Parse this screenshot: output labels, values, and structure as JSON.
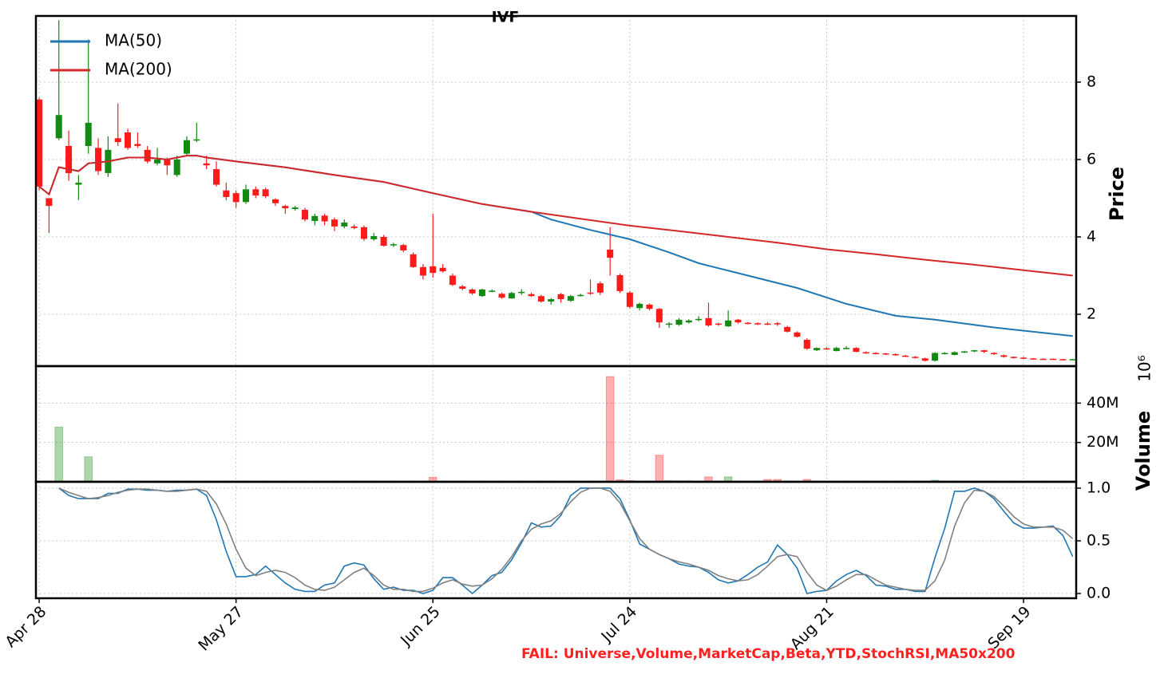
{
  "chart_data": [
    {
      "type": "candlestick",
      "title": "IVF",
      "categories": [
        "Apr 28",
        null,
        null,
        null,
        null,
        null,
        null,
        null,
        null,
        null,
        null,
        null,
        null,
        null,
        null,
        null,
        null,
        null,
        null,
        null,
        "May 27",
        null,
        null,
        null,
        null,
        null,
        null,
        null,
        null,
        null,
        null,
        null,
        null,
        null,
        null,
        null,
        null,
        null,
        null,
        null,
        "Jun 25",
        null,
        null,
        null,
        null,
        null,
        null,
        null,
        null,
        null,
        null,
        null,
        null,
        null,
        null,
        null,
        null,
        null,
        null,
        null,
        "Jul 24",
        null,
        null,
        null,
        null,
        null,
        null,
        null,
        null,
        null,
        null,
        null,
        null,
        null,
        null,
        null,
        null,
        null,
        null,
        null,
        "Aug 21",
        null,
        null,
        null,
        null,
        null,
        null,
        null,
        null,
        null,
        null,
        null,
        null,
        null,
        null,
        null,
        null,
        null,
        null,
        null,
        "Sep 19",
        null,
        null,
        null,
        null,
        null
      ],
      "open": [
        7.55,
        5.0,
        6.55,
        6.35,
        5.35,
        6.35,
        6.3,
        5.65,
        6.55,
        6.7,
        6.4,
        6.25,
        5.9,
        6.0,
        5.6,
        6.15,
        6.5,
        5.9,
        5.75,
        5.2,
        5.13,
        4.9,
        5.23,
        5.23,
        4.97,
        4.8,
        4.72,
        4.7,
        4.41,
        4.55,
        4.45,
        4.27,
        4.27,
        4.25,
        3.94,
        4.0,
        3.78,
        3.79,
        3.55,
        3.22,
        3.24,
        3.2,
        3.0,
        2.72,
        2.64,
        2.47,
        2.6,
        2.53,
        2.41,
        2.55,
        2.52,
        2.47,
        2.33,
        2.52,
        2.35,
        2.49,
        2.56,
        2.8,
        3.67,
        3.01,
        2.56,
        2.16,
        2.25,
        2.14,
        1.74,
        1.73,
        1.79,
        1.86,
        1.9,
        1.76,
        1.69,
        1.86,
        1.78,
        1.77,
        1.76,
        1.77,
        1.67,
        1.53,
        1.34,
        1.07,
        1.12,
        1.05,
        1.12,
        1.13,
        1.02,
        1.0,
        0.99,
        0.97,
        0.93,
        0.9,
        0.86,
        0.8,
        0.98,
        0.95,
        1.02,
        1.04,
        1.07,
        1.0,
        0.94,
        0.9,
        0.88,
        0.86,
        0.85,
        0.85,
        0.84,
        0.83
      ],
      "high": [
        7.6,
        5.0,
        9.6,
        6.75,
        5.6,
        9.1,
        6.55,
        6.6,
        7.45,
        6.8,
        6.7,
        6.35,
        6.3,
        6.05,
        6.1,
        6.6,
        6.95,
        6.1,
        5.95,
        5.4,
        5.2,
        5.35,
        5.3,
        5.27,
        5.0,
        4.83,
        4.8,
        4.75,
        4.6,
        4.6,
        4.5,
        4.45,
        4.32,
        4.3,
        4.1,
        4.05,
        3.85,
        3.82,
        3.6,
        3.3,
        4.6,
        3.3,
        3.05,
        2.76,
        2.67,
        2.66,
        2.64,
        2.56,
        2.58,
        2.65,
        2.56,
        2.5,
        2.42,
        2.55,
        2.5,
        2.53,
        2.9,
        2.85,
        4.25,
        3.05,
        2.6,
        2.3,
        2.28,
        2.16,
        1.8,
        1.9,
        1.87,
        1.95,
        2.3,
        1.78,
        2.1,
        1.88,
        1.8,
        1.79,
        1.8,
        1.8,
        1.7,
        1.56,
        1.38,
        1.14,
        1.15,
        1.16,
        1.18,
        1.15,
        1.04,
        1.02,
        1.0,
        0.99,
        0.95,
        0.92,
        0.88,
        1.02,
        1.02,
        1.04,
        1.06,
        1.08,
        1.08,
        1.02,
        0.96,
        0.91,
        0.9,
        0.87,
        0.86,
        0.86,
        0.85,
        0.85
      ],
      "low": [
        5.2,
        4.1,
        6.5,
        5.45,
        4.95,
        6.15,
        5.6,
        5.55,
        6.35,
        6.25,
        6.3,
        5.9,
        5.85,
        5.6,
        5.55,
        6.1,
        6.45,
        5.75,
        5.3,
        4.95,
        4.75,
        4.85,
        5.0,
        5.0,
        4.8,
        4.6,
        4.68,
        4.4,
        4.3,
        4.3,
        4.15,
        4.22,
        4.2,
        3.9,
        3.9,
        3.75,
        3.74,
        3.6,
        3.2,
        2.9,
        2.95,
        3.08,
        2.73,
        2.62,
        2.5,
        2.45,
        2.57,
        2.4,
        2.4,
        2.5,
        2.45,
        2.3,
        2.25,
        2.3,
        2.32,
        2.46,
        2.5,
        2.5,
        3.0,
        2.55,
        2.15,
        2.1,
        2.1,
        1.65,
        1.65,
        1.7,
        1.76,
        1.82,
        1.68,
        1.7,
        1.67,
        1.76,
        1.74,
        1.72,
        1.72,
        1.7,
        1.53,
        1.4,
        1.08,
        1.05,
        1.08,
        1.04,
        1.1,
        1.02,
        0.98,
        0.96,
        0.95,
        0.93,
        0.9,
        0.86,
        0.78,
        0.78,
        0.96,
        0.94,
        1.0,
        1.02,
        1.0,
        0.95,
        0.88,
        0.86,
        0.85,
        0.83,
        0.83,
        0.83,
        0.82,
        0.82
      ],
      "close": [
        5.3,
        4.8,
        7.15,
        5.65,
        5.4,
        6.95,
        5.7,
        6.25,
        6.45,
        6.3,
        6.35,
        5.95,
        6.0,
        5.85,
        6.0,
        6.5,
        6.52,
        5.85,
        5.35,
        5.03,
        4.9,
        5.23,
        5.07,
        5.05,
        4.87,
        4.74,
        4.76,
        4.45,
        4.54,
        4.4,
        4.27,
        4.37,
        4.23,
        3.95,
        4.02,
        3.77,
        3.81,
        3.65,
        3.22,
        3.0,
        3.07,
        3.11,
        2.76,
        2.66,
        2.54,
        2.64,
        2.61,
        2.43,
        2.55,
        2.58,
        2.47,
        2.33,
        2.39,
        2.39,
        2.47,
        2.5,
        2.54,
        2.56,
        3.46,
        2.6,
        2.19,
        2.27,
        2.14,
        1.79,
        1.76,
        1.86,
        1.84,
        1.88,
        1.71,
        1.74,
        1.84,
        1.79,
        1.77,
        1.76,
        1.75,
        1.76,
        1.55,
        1.42,
        1.11,
        1.13,
        1.1,
        1.13,
        1.13,
        1.03,
        1.0,
        0.97,
        0.97,
        0.94,
        0.92,
        0.87,
        0.8,
        1.0,
        1.0,
        1.02,
        1.04,
        1.07,
        1.03,
        0.97,
        0.9,
        0.88,
        0.87,
        0.84,
        0.84,
        0.84,
        0.83,
        0.84
      ],
      "up_color": "#138a13",
      "down_color": "#ff1a1a",
      "series": [
        {
          "name": "MA(50)",
          "color": "#1f77b4",
          "x": [
            0,
            1,
            2,
            3,
            4,
            5,
            7,
            9,
            11,
            13,
            15,
            16,
            17,
            20,
            25,
            30,
            35,
            40,
            45,
            50,
            52,
            56,
            60,
            64,
            67,
            72,
            77,
            82,
            87,
            91,
            97,
            105
          ],
          "values": [
            5.3,
            5.1,
            5.8,
            5.75,
            5.7,
            5.9,
            5.95,
            6.05,
            6.05,
            6.0,
            6.1,
            6.1,
            6.05,
            5.95,
            5.8,
            5.6,
            5.42,
            5.13,
            4.85,
            4.65,
            4.45,
            4.18,
            3.94,
            3.6,
            3.32,
            3.0,
            2.68,
            2.27,
            1.96,
            1.86,
            1.66,
            1.44
          ]
        },
        {
          "name": "MA(200)",
          "color": "#d62728",
          "x": [
            0,
            1,
            2,
            3,
            4,
            5,
            7,
            9,
            11,
            13,
            15,
            16,
            17,
            20,
            25,
            30,
            35,
            40,
            45,
            50,
            55,
            60,
            65,
            70,
            75,
            80,
            85,
            90,
            95,
            100,
            105
          ],
          "values": [
            5.3,
            5.1,
            5.8,
            5.75,
            5.7,
            5.9,
            5.95,
            6.05,
            6.05,
            6.0,
            6.1,
            6.1,
            6.05,
            5.95,
            5.8,
            5.6,
            5.42,
            5.13,
            4.85,
            4.65,
            4.47,
            4.29,
            4.15,
            4.0,
            3.85,
            3.68,
            3.55,
            3.41,
            3.28,
            3.14,
            3.0
          ]
        }
      ],
      "ylabel": "Price",
      "ylim": [
        0.66,
        9.71
      ],
      "yticks": [
        2,
        4,
        6,
        8
      ],
      "grid": true,
      "legend": "upper left"
    },
    {
      "type": "bar",
      "ylabel": "Volume",
      "offset_label": "10⁶",
      "values": [
        0.3,
        0.3,
        27.8,
        0.3,
        0.3,
        12.7,
        0.3,
        0.3,
        0.3,
        0.3,
        0.3,
        0.3,
        0.3,
        0.3,
        0.3,
        0.3,
        0.3,
        0.3,
        0.3,
        0.3,
        0.3,
        0.3,
        0.3,
        0.3,
        0.3,
        0.3,
        0.3,
        0.3,
        0.3,
        0.3,
        0.3,
        0.3,
        0.3,
        0.3,
        0.3,
        0.3,
        0.3,
        0.3,
        0.3,
        0.3,
        2.3,
        0.3,
        0.3,
        0.3,
        0.3,
        0.3,
        0.3,
        0.3,
        0.3,
        0.3,
        0.3,
        0.3,
        0.3,
        0.3,
        0.3,
        0.3,
        0.3,
        0.3,
        53.5,
        1.0,
        0.6,
        0.3,
        0.3,
        13.5,
        0.6,
        0.5,
        0.5,
        0.3,
        2.5,
        0.3,
        2.5,
        0.3,
        0.3,
        0.3,
        1.2,
        1.2,
        0.3,
        0.3,
        1.2,
        0.3,
        0.3,
        0.3,
        0.3,
        0.3,
        0.3,
        0.3,
        0.3,
        0.3,
        0.3,
        0.3,
        0.3,
        0.8,
        0.3,
        0.3,
        0.3,
        0.3,
        0.3,
        0.3,
        0.3,
        0.3,
        0.3,
        0.3,
        0.3,
        0.3,
        0.3,
        0.3
      ],
      "opacity": 0.35,
      "ylim": [
        0,
        58.8
      ],
      "yticks": [
        {
          "value": 20,
          "label": "20M"
        },
        {
          "value": 40,
          "label": "40M"
        }
      ],
      "grid": true
    },
    {
      "type": "line",
      "series": [
        {
          "color": "#1f77b4",
          "values": [
            null,
            null,
            1.0,
            0.93,
            0.9,
            0.9,
            0.9,
            0.95,
            0.95,
            0.99,
            0.99,
            0.98,
            0.98,
            0.97,
            0.98,
            0.98,
            0.99,
            0.93,
            0.7,
            0.4,
            0.16,
            0.16,
            0.18,
            0.26,
            0.18,
            0.1,
            0.04,
            0.02,
            0.02,
            0.08,
            0.1,
            0.26,
            0.29,
            0.27,
            0.14,
            0.04,
            0.06,
            0.03,
            0.03,
            0.0,
            0.03,
            0.15,
            0.15,
            0.08,
            0.0,
            0.08,
            0.17,
            0.2,
            0.32,
            0.48,
            0.67,
            0.63,
            0.64,
            0.74,
            0.93,
            1.0,
            1.0,
            1.0,
            1.0,
            0.9,
            0.7,
            0.47,
            0.42,
            0.37,
            0.33,
            0.28,
            0.26,
            0.25,
            0.2,
            0.13,
            0.1,
            0.12,
            0.18,
            0.25,
            0.3,
            0.46,
            0.37,
            0.24,
            0.0,
            0.02,
            0.03,
            0.12,
            0.18,
            0.22,
            0.17,
            0.08,
            0.07,
            0.04,
            0.04,
            0.02,
            0.02,
            0.34,
            0.62,
            0.97,
            0.97,
            1.0,
            0.97,
            0.9,
            0.78,
            0.67,
            0.62,
            0.62,
            0.63,
            0.64,
            0.55,
            0.35
          ]
        },
        {
          "color": "#808080",
          "values": [
            null,
            null,
            1.0,
            0.96,
            0.93,
            0.9,
            0.91,
            0.93,
            0.96,
            0.98,
            0.99,
            0.99,
            0.98,
            0.97,
            0.97,
            0.98,
            0.99,
            0.97,
            0.85,
            0.66,
            0.42,
            0.24,
            0.17,
            0.2,
            0.22,
            0.2,
            0.15,
            0.08,
            0.04,
            0.03,
            0.06,
            0.13,
            0.2,
            0.24,
            0.17,
            0.08,
            0.04,
            0.04,
            0.02,
            0.02,
            0.05,
            0.1,
            0.13,
            0.09,
            0.07,
            0.08,
            0.14,
            0.23,
            0.35,
            0.5,
            0.61,
            0.66,
            0.69,
            0.76,
            0.87,
            0.96,
            1.0,
            1.0,
            0.97,
            0.86,
            0.69,
            0.52,
            0.42,
            0.37,
            0.33,
            0.3,
            0.28,
            0.25,
            0.22,
            0.17,
            0.14,
            0.12,
            0.13,
            0.18,
            0.26,
            0.35,
            0.37,
            0.35,
            0.2,
            0.08,
            0.03,
            0.07,
            0.13,
            0.18,
            0.18,
            0.13,
            0.08,
            0.06,
            0.04,
            0.03,
            0.03,
            0.12,
            0.32,
            0.64,
            0.86,
            0.98,
            0.97,
            0.92,
            0.83,
            0.73,
            0.66,
            0.63,
            0.63,
            0.63,
            0.6,
            0.52
          ]
        }
      ],
      "ylim": [
        -0.045,
        1.06
      ],
      "yticks": [
        {
          "value": 0,
          "label": "0.0"
        },
        {
          "value": 0.5,
          "label": "0.5"
        },
        {
          "value": 1,
          "label": "1.0"
        }
      ],
      "grid": true
    }
  ],
  "footnote": "FAIL: Universe,Volume,MarketCap,Beta,YTD,StochRSI,MA50x200"
}
